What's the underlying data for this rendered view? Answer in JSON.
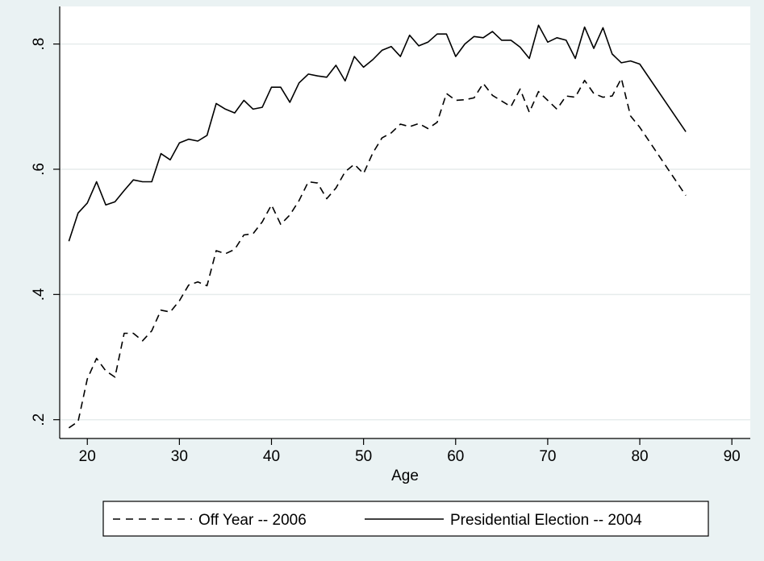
{
  "chart_data": {
    "type": "line",
    "title": "",
    "xlabel": "Age",
    "ylabel": "",
    "xlim": [
      17,
      92
    ],
    "ylim": [
      0.17,
      0.86
    ],
    "xticks": [
      20,
      30,
      40,
      50,
      60,
      70,
      80,
      90
    ],
    "xtick_labels": [
      "20",
      "30",
      "40",
      "50",
      "60",
      "70",
      "80",
      "90"
    ],
    "yticks": [
      0.2,
      0.4,
      0.6,
      0.8
    ],
    "ytick_labels": [
      ".2",
      ".4",
      ".6",
      ".8"
    ],
    "grid": "horizontal",
    "legend_position": "bottom",
    "x": [
      18,
      19,
      20,
      21,
      22,
      23,
      24,
      25,
      26,
      27,
      28,
      29,
      30,
      31,
      32,
      33,
      34,
      35,
      36,
      37,
      38,
      39,
      40,
      41,
      42,
      43,
      44,
      45,
      46,
      47,
      48,
      49,
      50,
      51,
      52,
      53,
      54,
      55,
      56,
      57,
      58,
      59,
      60,
      61,
      62,
      63,
      64,
      65,
      66,
      67,
      68,
      69,
      70,
      71,
      72,
      73,
      74,
      75,
      76,
      77,
      78,
      79,
      80,
      85
    ],
    "series": [
      {
        "name": "Off Year -- 2006",
        "style": "dashed",
        "color": "#000000",
        "values": [
          0.187,
          0.197,
          0.265,
          0.298,
          0.278,
          0.268,
          0.338,
          0.338,
          0.326,
          0.342,
          0.375,
          0.372,
          0.39,
          0.415,
          0.42,
          0.414,
          0.47,
          0.465,
          0.472,
          0.495,
          0.497,
          0.516,
          0.543,
          0.512,
          0.527,
          0.55,
          0.58,
          0.578,
          0.553,
          0.57,
          0.596,
          0.608,
          0.593,
          0.626,
          0.65,
          0.658,
          0.672,
          0.668,
          0.673,
          0.665,
          0.675,
          0.721,
          0.71,
          0.711,
          0.714,
          0.737,
          0.718,
          0.709,
          0.7,
          0.728,
          0.691,
          0.724,
          0.71,
          0.696,
          0.717,
          0.715,
          0.742,
          0.721,
          0.715,
          0.717,
          0.745,
          0.685,
          0.667,
          0.558
        ]
      },
      {
        "name": "Presidential Election -- 2004",
        "style": "solid",
        "color": "#000000",
        "values": [
          0.485,
          0.53,
          0.546,
          0.58,
          0.543,
          0.548,
          0.566,
          0.583,
          0.58,
          0.58,
          0.625,
          0.615,
          0.642,
          0.648,
          0.645,
          0.654,
          0.705,
          0.696,
          0.69,
          0.71,
          0.696,
          0.699,
          0.731,
          0.731,
          0.707,
          0.738,
          0.752,
          0.749,
          0.747,
          0.766,
          0.741,
          0.78,
          0.763,
          0.775,
          0.79,
          0.796,
          0.78,
          0.814,
          0.797,
          0.803,
          0.816,
          0.816,
          0.78,
          0.8,
          0.812,
          0.81,
          0.82,
          0.806,
          0.806,
          0.795,
          0.777,
          0.83,
          0.803,
          0.81,
          0.806,
          0.777,
          0.827,
          0.793,
          0.826,
          0.784,
          0.77,
          0.773,
          0.768,
          0.66
        ]
      }
    ]
  }
}
